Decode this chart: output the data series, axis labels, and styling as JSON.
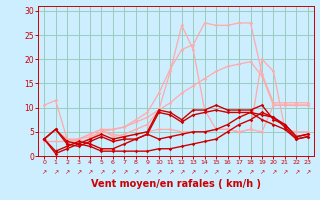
{
  "background_color": "#cceeff",
  "grid_color": "#99ccbb",
  "xlabel": "Vent moyen/en rafales ( km/h )",
  "xlabel_color": "#cc0000",
  "xlabel_fontsize": 7,
  "tick_color": "#cc0000",
  "ylim": [
    0,
    31
  ],
  "xlim": [
    -0.5,
    23.5
  ],
  "yticks": [
    0,
    5,
    10,
    15,
    20,
    25,
    30
  ],
  "xticks": [
    0,
    1,
    2,
    3,
    4,
    5,
    6,
    7,
    8,
    9,
    10,
    11,
    12,
    13,
    14,
    15,
    16,
    17,
    18,
    19,
    20,
    21,
    22,
    23
  ],
  "series": [
    {
      "x": [
        0,
        1,
        2,
        3,
        4,
        5,
        6,
        7,
        8,
        9,
        10,
        11,
        12,
        13,
        14,
        15,
        16,
        17,
        18,
        19,
        20,
        21,
        22,
        23
      ],
      "y": [
        3.5,
        5.5,
        3.5,
        3.5,
        4.5,
        5.5,
        5.5,
        6.0,
        7.5,
        9.0,
        13.0,
        18.0,
        22.0,
        23.0,
        27.5,
        27.0,
        27.0,
        27.5,
        27.5,
        17.0,
        11.0,
        11.0,
        11.0,
        11.0
      ],
      "color": "#ffaaaa",
      "lw": 0.9,
      "marker": "D",
      "ms": 1.8
    },
    {
      "x": [
        0,
        1,
        2,
        3,
        4,
        5,
        6,
        7,
        8,
        9,
        10,
        11,
        12,
        13,
        14,
        15,
        16,
        17,
        18,
        19,
        20,
        21,
        22,
        23
      ],
      "y": [
        3.5,
        5.5,
        2.5,
        3.5,
        4.5,
        5.5,
        4.0,
        4.5,
        5.5,
        6.5,
        9.5,
        17.5,
        27.0,
        22.0,
        9.5,
        5.5,
        5.5,
        5.0,
        5.5,
        20.0,
        17.5,
        5.5,
        5.0,
        5.0
      ],
      "color": "#ffaaaa",
      "lw": 0.9,
      "marker": "D",
      "ms": 1.8
    },
    {
      "x": [
        0,
        1,
        2,
        3,
        4,
        5,
        6,
        7,
        8,
        9,
        10,
        11,
        12,
        13,
        14,
        15,
        16,
        17,
        18,
        19,
        20,
        21,
        22,
        23
      ],
      "y": [
        10.5,
        11.5,
        3.5,
        3.0,
        3.5,
        5.0,
        4.5,
        4.0,
        4.5,
        5.0,
        5.5,
        5.5,
        5.0,
        5.0,
        5.0,
        5.5,
        5.5,
        5.0,
        5.5,
        5.0,
        10.5,
        10.5,
        10.5,
        10.5
      ],
      "color": "#ffaaaa",
      "lw": 0.9,
      "marker": "D",
      "ms": 1.8
    },
    {
      "x": [
        0,
        1,
        2,
        3,
        4,
        5,
        6,
        7,
        8,
        9,
        10,
        11,
        12,
        13,
        14,
        15,
        16,
        17,
        18,
        19,
        20,
        21,
        22,
        23
      ],
      "y": [
        3.0,
        3.0,
        3.0,
        3.5,
        4.0,
        5.0,
        5.5,
        6.0,
        7.0,
        8.0,
        9.5,
        11.0,
        13.0,
        14.5,
        16.0,
        17.5,
        18.5,
        19.0,
        19.5,
        16.5,
        10.5,
        10.5,
        10.5,
        10.5
      ],
      "color": "#ffaaaa",
      "lw": 0.9,
      "marker": "D",
      "ms": 1.8
    },
    {
      "x": [
        0,
        1,
        2,
        3,
        4,
        5,
        6,
        7,
        8,
        9,
        10,
        11,
        12,
        13,
        14,
        15,
        16,
        17,
        18,
        19,
        20,
        21,
        22,
        23
      ],
      "y": [
        3.5,
        5.5,
        3.0,
        2.5,
        3.5,
        4.5,
        3.5,
        4.0,
        4.5,
        5.0,
        9.5,
        9.0,
        7.5,
        9.5,
        9.5,
        10.5,
        9.5,
        9.5,
        9.5,
        10.5,
        7.5,
        6.5,
        4.0,
        4.5
      ],
      "color": "#cc0000",
      "lw": 1.0,
      "marker": "D",
      "ms": 1.8
    },
    {
      "x": [
        0,
        1,
        2,
        3,
        4,
        5,
        6,
        7,
        8,
        9,
        10,
        11,
        12,
        13,
        14,
        15,
        16,
        17,
        18,
        19,
        20,
        21,
        22,
        23
      ],
      "y": [
        3.5,
        5.5,
        2.5,
        2.0,
        3.0,
        4.0,
        3.0,
        3.5,
        3.5,
        4.5,
        9.0,
        8.5,
        7.0,
        8.5,
        9.0,
        9.5,
        9.0,
        9.0,
        9.0,
        7.5,
        6.5,
        5.5,
        3.5,
        4.0
      ],
      "color": "#cc0000",
      "lw": 1.0,
      "marker": "D",
      "ms": 1.8
    },
    {
      "x": [
        0,
        1,
        2,
        3,
        4,
        5,
        6,
        7,
        8,
        9,
        10,
        11,
        12,
        13,
        14,
        15,
        16,
        17,
        18,
        19,
        20,
        21,
        22,
        23
      ],
      "y": [
        3.5,
        1.0,
        2.0,
        3.0,
        2.5,
        1.5,
        1.5,
        2.5,
        3.5,
        4.5,
        3.5,
        4.0,
        4.5,
        5.0,
        5.0,
        5.5,
        6.5,
        8.0,
        9.0,
        8.5,
        8.0,
        6.5,
        4.0,
        4.5
      ],
      "color": "#cc0000",
      "lw": 1.0,
      "marker": "D",
      "ms": 1.8
    },
    {
      "x": [
        0,
        1,
        2,
        3,
        4,
        5,
        6,
        7,
        8,
        9,
        10,
        11,
        12,
        13,
        14,
        15,
        16,
        17,
        18,
        19,
        20,
        21,
        22,
        23
      ],
      "y": [
        3.5,
        0.5,
        1.5,
        2.5,
        2.0,
        1.0,
        1.0,
        1.0,
        1.0,
        1.0,
        1.5,
        1.5,
        2.0,
        2.5,
        3.0,
        3.5,
        5.0,
        6.5,
        7.5,
        9.0,
        8.0,
        6.0,
        3.5,
        4.0
      ],
      "color": "#cc0000",
      "lw": 1.0,
      "marker": "D",
      "ms": 1.8
    }
  ],
  "arrow_symbol": "↗",
  "arrow_color": "#cc0000",
  "arrow_fontsize": 4.5
}
